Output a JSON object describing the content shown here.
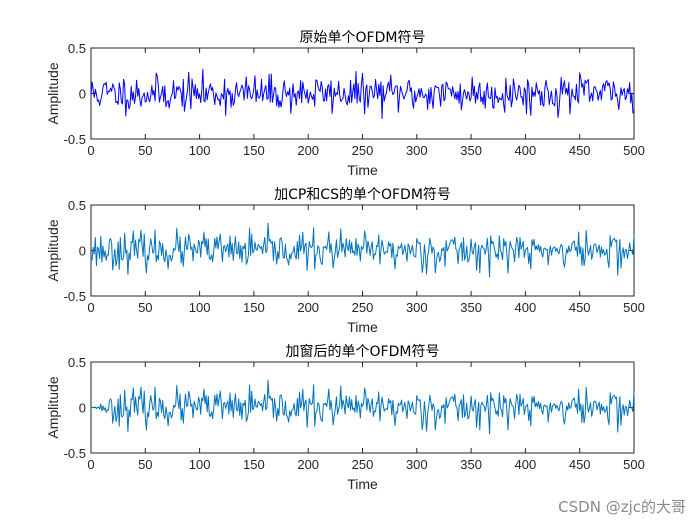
{
  "chart_data": [
    {
      "type": "line",
      "title": "原始单个OFDM符号",
      "xlabel": "Time",
      "ylabel": "Amplitude",
      "xlim": [
        0,
        500
      ],
      "ylim": [
        -0.5,
        0.5
      ],
      "xticks": [
        "0",
        "50",
        "100",
        "150",
        "200",
        "250",
        "300",
        "350",
        "400",
        "450",
        "500"
      ],
      "yticks": [
        "0.5",
        "0",
        "-0.5"
      ],
      "series": [
        {
          "color": "#0000ff",
          "seed": 11,
          "envelope": "full",
          "amplitude": 0.13,
          "peak": 0.33,
          "n": 500
        }
      ]
    },
    {
      "type": "line",
      "title": "加CP和CS的单个OFDM符号",
      "xlabel": "Time",
      "ylabel": "Amplitude",
      "xlim": [
        0,
        500
      ],
      "ylim": [
        -0.5,
        0.5
      ],
      "xticks": [
        "0",
        "50",
        "100",
        "150",
        "200",
        "250",
        "300",
        "350",
        "400",
        "450",
        "500"
      ],
      "yticks": [
        "0.5",
        "0",
        "-0.5"
      ],
      "series": [
        {
          "color": "#0072bd",
          "seed": 23,
          "envelope": "full",
          "amplitude": 0.13,
          "peak": 0.33,
          "n": 500
        }
      ]
    },
    {
      "type": "line",
      "title": "加窗后的单个OFDM符号",
      "xlabel": "Time",
      "ylabel": "Amplitude",
      "xlim": [
        0,
        500
      ],
      "ylim": [
        -0.5,
        0.5
      ],
      "xticks": [
        "0",
        "50",
        "100",
        "150",
        "200",
        "250",
        "300",
        "350",
        "400",
        "450",
        "500"
      ],
      "yticks": [
        "0.5",
        "0",
        "-0.5"
      ],
      "series": [
        {
          "color": "#0072bd",
          "seed": 23,
          "envelope": "window",
          "amplitude": 0.13,
          "peak": 0.33,
          "n": 500
        }
      ]
    }
  ],
  "watermark": "CSDN @zjc的大哥"
}
